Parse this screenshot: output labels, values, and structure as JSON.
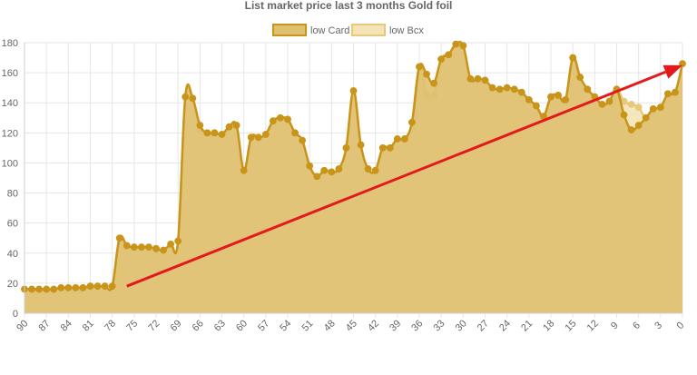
{
  "chart_data": {
    "type": "area",
    "title": "List market price last 3 months Gold foil",
    "legend_position": "top-center",
    "grid": true,
    "ylim": [
      0,
      180
    ],
    "y_ticks": [
      0,
      20,
      40,
      60,
      80,
      100,
      120,
      140,
      160,
      180
    ],
    "x_range": [
      90,
      0
    ],
    "x_ticks": [
      90,
      87,
      84,
      81,
      78,
      75,
      72,
      69,
      66,
      63,
      60,
      57,
      54,
      51,
      48,
      45,
      42,
      39,
      36,
      33,
      30,
      27,
      24,
      21,
      18,
      15,
      12,
      9,
      6,
      3,
      0
    ],
    "x": [
      90,
      89,
      88,
      87,
      86,
      85,
      84,
      83,
      82,
      81,
      80,
      79,
      78,
      77,
      76,
      75,
      74,
      73,
      72,
      71,
      70,
      69,
      68,
      67,
      66,
      65,
      64,
      63,
      62,
      61,
      60,
      59,
      58,
      57,
      56,
      55,
      54,
      53,
      52,
      51,
      50,
      49,
      48,
      47,
      46,
      45,
      44,
      43,
      42,
      41,
      40,
      39,
      38,
      37,
      36,
      35,
      34,
      33,
      32,
      31,
      30,
      29,
      28,
      27,
      26,
      25,
      24,
      23,
      22,
      21,
      20,
      19,
      18,
      17,
      16,
      15,
      14,
      13,
      12,
      11,
      10,
      9,
      8,
      7,
      6,
      5,
      4,
      3,
      2,
      1,
      0
    ],
    "series": [
      {
        "name": "low Card",
        "color": "#c8941a",
        "fill": "#dfc070",
        "values": [
          16,
          16,
          16,
          16,
          16,
          17,
          17,
          17,
          17,
          18,
          18,
          18,
          18,
          50,
          45,
          44,
          44,
          44,
          43,
          42,
          46,
          48,
          144,
          143,
          125,
          120,
          120,
          119,
          124,
          125,
          95,
          117,
          117,
          119,
          128,
          130,
          129,
          120,
          115,
          98,
          91,
          95,
          94,
          96,
          110,
          148,
          112,
          96,
          95,
          110,
          110,
          116,
          116,
          127,
          164,
          159,
          153,
          169,
          172,
          179,
          178,
          156,
          156,
          155,
          150,
          149,
          150,
          149,
          147,
          142,
          138,
          131,
          144,
          145,
          142,
          170,
          157,
          149,
          144,
          139,
          141,
          149,
          132,
          122,
          125,
          130,
          136,
          137,
          146,
          147,
          166
        ]
      },
      {
        "name": "low Bcx",
        "color": "#e6c97a",
        "fill": "#f3e3b6",
        "values": [
          16,
          16,
          16,
          16,
          16,
          17,
          17,
          17,
          17,
          18,
          18,
          18,
          18,
          50,
          45,
          44,
          44,
          44,
          43,
          42,
          46,
          48,
          144,
          143,
          122,
          120,
          120,
          119,
          124,
          125,
          95,
          117,
          117,
          119,
          128,
          130,
          129,
          120,
          115,
          98,
          91,
          95,
          94,
          96,
          110,
          148,
          112,
          96,
          95,
          110,
          110,
          116,
          116,
          127,
          164,
          145,
          145,
          169,
          172,
          179,
          178,
          156,
          156,
          155,
          150,
          149,
          150,
          149,
          147,
          142,
          138,
          131,
          144,
          145,
          142,
          170,
          157,
          149,
          144,
          139,
          141,
          149,
          141,
          139,
          137,
          130,
          136,
          137,
          146,
          147,
          166
        ]
      }
    ],
    "annotation": {
      "type": "trend-arrow",
      "color": "#e31a1c",
      "from": {
        "x": 76,
        "y": 18
      },
      "to": {
        "x": 0,
        "y": 165
      }
    }
  }
}
